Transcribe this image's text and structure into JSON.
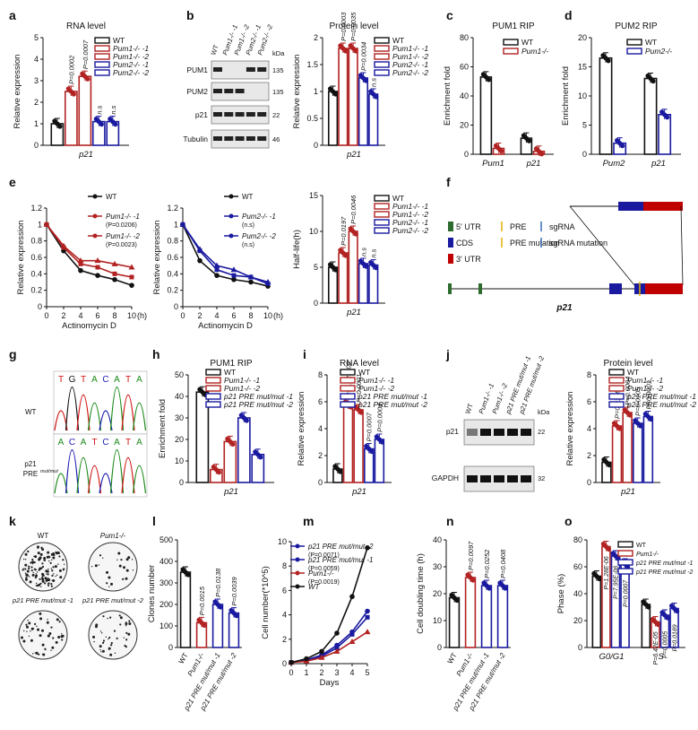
{
  "panel_letters": [
    "a",
    "b",
    "c",
    "d",
    "e",
    "f",
    "g",
    "h",
    "i",
    "j",
    "k",
    "l",
    "m",
    "n",
    "o"
  ],
  "common": {
    "relative_expression": "Relative expression",
    "enrichment_fold": "Enrichment fold",
    "p21": "p21"
  },
  "chart_data": [
    {
      "id": "a",
      "type": "bar",
      "title": "RNA level",
      "ylabel": "Relative expression",
      "xlabel": "p21",
      "ylim": [
        0,
        5
      ],
      "yticks": [
        0,
        1,
        2,
        3,
        4,
        5
      ],
      "legend": [
        "WT",
        "Pum1-/- -1",
        "Pum1-/- -2",
        "Pum2-/- -1",
        "Pum2-/- -2"
      ],
      "series": [
        {
          "name": "WT",
          "values": [
            1.0
          ],
          "color": "#111111"
        },
        {
          "name": "Pum1-/- -1",
          "values": [
            2.5
          ],
          "color": "#b22222"
        },
        {
          "name": "Pum1-/- -2",
          "values": [
            3.2
          ],
          "color": "#b22222"
        },
        {
          "name": "Pum2-/- -1",
          "values": [
            1.1
          ],
          "color": "#1a1aa0"
        },
        {
          "name": "Pum2-/- -2",
          "values": [
            1.1
          ],
          "color": "#1a1aa0"
        }
      ],
      "annotations": [
        "P=0.0002",
        "P=0.0007",
        "n.s",
        "n.s"
      ]
    },
    {
      "id": "b_blot",
      "type": "blot",
      "lanes": [
        "WT",
        "Pum1-/- -1",
        "Pum1-/- -2",
        "Pum2-/- -1",
        "Pum2-/- -2"
      ],
      "rows": [
        "PUM1",
        "PUM2",
        "p21",
        "Tubulin"
      ],
      "kda_header": "kDa",
      "kda": [
        "135",
        "135",
        "22",
        "46"
      ]
    },
    {
      "id": "b",
      "type": "bar",
      "title": "Protein level",
      "ylabel": "Relative expression",
      "xlabel": "p21",
      "ylim": [
        0,
        2.0
      ],
      "yticks": [
        0,
        0.5,
        1.0,
        1.5,
        2.0
      ],
      "legend": [
        "WT",
        "Pum1-/- -1",
        "Pum1-/- -2",
        "Pum2-/- -1",
        "Pum2-/- -2"
      ],
      "series": [
        {
          "name": "WT",
          "values": [
            1.0
          ],
          "color": "#111111"
        },
        {
          "name": "Pum1-/- -1",
          "values": [
            1.8
          ],
          "color": "#b22222"
        },
        {
          "name": "Pum1-/- -2",
          "values": [
            1.8
          ],
          "color": "#b22222"
        },
        {
          "name": "Pum2-/- -1",
          "values": [
            1.25
          ],
          "color": "#1a1aa0"
        },
        {
          "name": "Pum2-/- -2",
          "values": [
            0.95
          ],
          "color": "#1a1aa0"
        }
      ],
      "annotations": [
        "P=0.0003",
        "P=0.0035",
        "P=0.0034",
        "n.s"
      ]
    },
    {
      "id": "c",
      "type": "bar",
      "title": "PUM1 RIP",
      "ylabel": "Enrichment fold",
      "categories": [
        "Pum1",
        "p21"
      ],
      "ylim": [
        0,
        80
      ],
      "yticks": [
        0,
        20,
        40,
        60,
        80
      ],
      "legend": [
        "WT",
        "Pum1-/-"
      ],
      "series": [
        {
          "name": "WT",
          "values": [
            53,
            11
          ],
          "color": "#111111"
        },
        {
          "name": "Pum1-/-",
          "values": [
            4,
            2
          ],
          "color": "#b22222"
        }
      ]
    },
    {
      "id": "d",
      "type": "bar",
      "title": "PUM2 RIP",
      "ylabel": "Enrichment fold",
      "categories": [
        "Pum2",
        "p21"
      ],
      "ylim": [
        0,
        20
      ],
      "yticks": [
        0,
        5,
        10,
        15,
        20
      ],
      "legend": [
        "WT",
        "Pum2-/-"
      ],
      "series": [
        {
          "name": "WT",
          "values": [
            16.5,
            13
          ],
          "color": "#111111"
        },
        {
          "name": "Pum2-/-",
          "values": [
            1.9,
            6.8
          ],
          "color": "#1a1aa0"
        }
      ]
    },
    {
      "id": "e1",
      "type": "line",
      "ylabel": "Relative expression",
      "xlabel": "Actinomycin D",
      "xunit": "(h)",
      "x": [
        0,
        2,
        4,
        6,
        8,
        10
      ],
      "xticks": [
        0,
        2,
        4,
        6,
        8,
        10
      ],
      "ylim": [
        0,
        1.2
      ],
      "yticks": [
        0,
        0.2,
        0.4,
        0.6,
        0.8,
        1.0,
        1.2
      ],
      "series": [
        {
          "name": "WT",
          "values": [
            1.0,
            0.68,
            0.44,
            0.38,
            0.33,
            0.26
          ],
          "color": "#111111",
          "marker": "circle"
        },
        {
          "name": "Pum1-/- -1",
          "values": [
            1.0,
            0.72,
            0.52,
            0.48,
            0.4,
            0.36
          ],
          "color": "#b22222",
          "marker": "square"
        },
        {
          "name": "Pum1-/- -2",
          "values": [
            1.0,
            0.74,
            0.56,
            0.56,
            0.52,
            0.48
          ],
          "color": "#b22222",
          "marker": "triangle"
        }
      ],
      "annotations": [
        "(P=0.0206)",
        "(P=0.0023)"
      ]
    },
    {
      "id": "e2",
      "type": "line",
      "ylabel": "Relative expression",
      "xlabel": "Actinomycin D",
      "xunit": "(h)",
      "x": [
        0,
        2,
        4,
        6,
        8,
        10
      ],
      "xticks": [
        0,
        2,
        4,
        6,
        8,
        10
      ],
      "ylim": [
        0,
        1.2
      ],
      "yticks": [
        0,
        0.2,
        0.4,
        0.6,
        0.8,
        1.0,
        1.2
      ],
      "series": [
        {
          "name": "WT",
          "values": [
            1.0,
            0.56,
            0.38,
            0.33,
            0.3,
            0.25
          ],
          "color": "#111111",
          "marker": "circle"
        },
        {
          "name": "Pum2-/- -1",
          "values": [
            1.0,
            0.68,
            0.45,
            0.38,
            0.36,
            0.28
          ],
          "color": "#1a1aa0",
          "marker": "square"
        },
        {
          "name": "Pum2-/- -2",
          "values": [
            1.0,
            0.7,
            0.5,
            0.45,
            0.36,
            0.3
          ],
          "color": "#1a1aa0",
          "marker": "triangle"
        }
      ],
      "annotations": [
        "(n.s)",
        "(n.s)"
      ]
    },
    {
      "id": "e3",
      "type": "bar",
      "ylabel": "Half-life(h)",
      "xlabel": "p21",
      "ylim": [
        0,
        15
      ],
      "yticks": [
        0,
        5,
        10,
        15
      ],
      "legend": [
        "WT",
        "Pum1-/- -1",
        "Pum1-/- -2",
        "Pum2-/- -1",
        "Pum2-/- -2"
      ],
      "series": [
        {
          "name": "WT",
          "values": [
            5.0
          ],
          "color": "#111111"
        },
        {
          "name": "Pum1-/- -1",
          "values": [
            7.0
          ],
          "color": "#b22222"
        },
        {
          "name": "Pum1-/- -2",
          "values": [
            10.0
          ],
          "color": "#b22222"
        },
        {
          "name": "Pum2-/- -1",
          "values": [
            5.5
          ],
          "color": "#1a1aa0"
        },
        {
          "name": "Pum2-/- -2",
          "values": [
            5.3
          ],
          "color": "#1a1aa0"
        }
      ],
      "annotations": [
        "P=0.0197",
        "P=0.0046",
        "n.s",
        "n.s"
      ]
    },
    {
      "id": "f_diagram",
      "type": "diagram",
      "legend": [
        "5' UTR",
        "PRE",
        "sgRNA",
        "CDS",
        "PRE mutation",
        "sgRNA mutation",
        "3' UTR"
      ],
      "label": "p21"
    },
    {
      "id": "g",
      "type": "chromatogram",
      "top_label": "WT",
      "top_seq": "TGTACATA",
      "bottom_label": "p21 PRE mut/mut",
      "bottom_seq": "ACATCATA"
    },
    {
      "id": "h",
      "type": "bar",
      "title": "PUM1 RIP",
      "ylabel": "Enrichment fold",
      "xlabel": "p21",
      "ylim": [
        0,
        50
      ],
      "yticks": [
        0,
        10,
        20,
        30,
        40,
        50
      ],
      "legend": [
        "WT",
        "Pum1-/- -1",
        "Pum1-/- -2",
        "p21 PRE mut/mut -1",
        "p21 PRE mut/mut -2"
      ],
      "series": [
        {
          "name": "WT",
          "values": [
            42
          ],
          "color": "#111111"
        },
        {
          "name": "Pum1-/- -1",
          "values": [
            6
          ],
          "color": "#b22222"
        },
        {
          "name": "Pum1-/- -2",
          "values": [
            19
          ],
          "color": "#b22222"
        },
        {
          "name": "p21 PRE mut/mut -1",
          "values": [
            30
          ],
          "color": "#1a1aa0"
        },
        {
          "name": "p21 PRE mut/mut -2",
          "values": [
            13
          ],
          "color": "#1a1aa0"
        }
      ]
    },
    {
      "id": "i",
      "type": "bar",
      "title": "RNA level",
      "ylabel": "Relative expression",
      "xlabel": "p21",
      "ylim": [
        0,
        8
      ],
      "yticks": [
        0,
        2,
        4,
        6,
        8
      ],
      "legend": [
        "WT",
        "Pum1-/- -1",
        "Pum1-/- -2",
        "p21 PRE mut/mut -1",
        "p21 PRE mut/mut -2"
      ],
      "series": [
        {
          "name": "WT",
          "values": [
            1.0
          ],
          "color": "#111111"
        },
        {
          "name": "Pum1-/- -1",
          "values": [
            5.8
          ],
          "color": "#b22222"
        },
        {
          "name": "Pum1-/- -2",
          "values": [
            5.4
          ],
          "color": "#b22222"
        },
        {
          "name": "p21 PRE mut/mut -1",
          "values": [
            2.5
          ],
          "color": "#1a1aa0"
        },
        {
          "name": "p21 PRE mut/mut -2",
          "values": [
            3.2
          ],
          "color": "#1a1aa0"
        }
      ],
      "annotations": [
        "P=5.92E-06",
        "P=0.0001",
        "P=0.0007",
        "P=0.0004"
      ]
    },
    {
      "id": "j_blot",
      "type": "blot",
      "lanes": [
        "WT",
        "Pum1-/- -1",
        "Pum1-/- -2",
        "p21 PRE mut/mut -1",
        "p21 PRE mut/mut -2"
      ],
      "rows": [
        "p21",
        "GAPDH"
      ],
      "kda_header": "kDa",
      "kda": [
        "22",
        "32"
      ]
    },
    {
      "id": "j",
      "type": "bar",
      "title": "Protein level",
      "ylabel": "Relative expression",
      "xlabel": "p21",
      "ylim": [
        0,
        8
      ],
      "yticks": [
        0,
        2,
        4,
        6,
        8
      ],
      "legend": [
        "WT",
        "Pum1-/- -1",
        "Pum1-/- -2",
        "p21 PRE mut/mut -1",
        "p21 PRE mut/mut -2"
      ],
      "series": [
        {
          "name": "WT",
          "values": [
            1.5
          ],
          "color": "#111111"
        },
        {
          "name": "Pum1-/- -1",
          "values": [
            4.2
          ],
          "color": "#b22222"
        },
        {
          "name": "Pum1-/- -2",
          "values": [
            5.2
          ],
          "color": "#b22222"
        },
        {
          "name": "p21 PRE mut/mut -1",
          "values": [
            4.4
          ],
          "color": "#1a1aa0"
        },
        {
          "name": "p21 PRE mut/mut -2",
          "values": [
            4.9
          ],
          "color": "#1a1aa0"
        }
      ],
      "annotations": [
        "P=0.0156",
        "P=0.0004",
        "P=0.0105",
        "P=0.0001"
      ]
    },
    {
      "id": "k",
      "type": "image_grid",
      "labels": [
        "WT",
        "Pum1-/-",
        "p21 PRE mut/mut -1",
        "p21 PRE mut/mut -2"
      ]
    },
    {
      "id": "l",
      "type": "bar",
      "ylabel": "Clones number",
      "categories": [
        "WT",
        "Pum1-/-",
        "p21 PRE mut/mut -1",
        "p21 PRE mut/mut -2"
      ],
      "ylim": [
        0,
        500
      ],
      "yticks": [
        0,
        100,
        200,
        300,
        400,
        500
      ],
      "values": [
        350,
        115,
        200,
        160
      ],
      "colors": [
        "#111111",
        "#b22222",
        "#1a1aa0",
        "#1a1aa0"
      ],
      "annotations": [
        "P=0.0015",
        "P=0.0138",
        "P=0.0039"
      ]
    },
    {
      "id": "m",
      "type": "line",
      "ylabel": "Cell number(*10^5)",
      "xlabel": "Days",
      "x": [
        0,
        1,
        2,
        3,
        4,
        5
      ],
      "xticks": [
        0,
        1,
        2,
        3,
        4,
        5
      ],
      "ylim": [
        0,
        10
      ],
      "yticks": [
        0,
        2,
        4,
        6,
        8,
        10
      ],
      "series": [
        {
          "name": "p21 PRE mut/mut -2",
          "values": [
            0.1,
            0.3,
            0.7,
            1.5,
            2.6,
            4.3
          ],
          "color": "#1a1aa0",
          "marker": "circle"
        },
        {
          "name": "p21 PRE mut/mut -1",
          "values": [
            0.1,
            0.3,
            0.6,
            1.3,
            2.4,
            3.8
          ],
          "color": "#1a1aa0",
          "marker": "square"
        },
        {
          "name": "Pum1-/-",
          "values": [
            0.1,
            0.2,
            0.5,
            1.0,
            1.8,
            2.6
          ],
          "color": "#b22222",
          "marker": "triangle"
        },
        {
          "name": "WT",
          "values": [
            0.1,
            0.4,
            1.0,
            2.5,
            5.5,
            9.5
          ],
          "color": "#111111",
          "marker": "circle"
        }
      ],
      "annotations": [
        "(P=0.0071)",
        "(P=0.0059)",
        "(P=0.0019)"
      ]
    },
    {
      "id": "n",
      "type": "bar",
      "ylabel": "Cell doubling time (h)",
      "categories": [
        "WT",
        "Pum1-/-",
        "p21 PRE mut/mut -1",
        "p21 PRE mut/mut -2"
      ],
      "ylim": [
        0,
        40
      ],
      "yticks": [
        0,
        10,
        20,
        30,
        40
      ],
      "values": [
        18.5,
        26,
        23,
        23
      ],
      "colors": [
        "#111111",
        "#b22222",
        "#1a1aa0",
        "#1a1aa0"
      ],
      "annotations": [
        "P=0.0097",
        "P=0.0252",
        "P=0.0408"
      ]
    },
    {
      "id": "o",
      "type": "bar",
      "ylabel": "Phase (%)",
      "categories": [
        "G0/G1",
        "S"
      ],
      "ylim": [
        0,
        80
      ],
      "yticks": [
        0,
        20,
        40,
        60,
        80
      ],
      "legend": [
        "WT",
        "Pum1-/-",
        "p21 PRE mut/mut -1",
        "p21 PRE mut/mut -2"
      ],
      "series": [
        {
          "name": "WT",
          "values": [
            53,
            32
          ],
          "color": "#111111"
        },
        {
          "name": "Pum1-/-",
          "values": [
            75,
            19
          ],
          "color": "#b22222"
        },
        {
          "name": "p21 PRE mut/mut -1",
          "values": [
            68,
            24
          ],
          "color": "#1a1aa0"
        },
        {
          "name": "p21 PRE mut/mut -2",
          "values": [
            62,
            29
          ],
          "color": "#1a1aa0"
        }
      ],
      "annotations": [
        "P=1.28E-06",
        "P=7.95E-06",
        "P=0.0007",
        "P=6.42E-05",
        "P=0.0005",
        "P=0.0189"
      ]
    }
  ]
}
